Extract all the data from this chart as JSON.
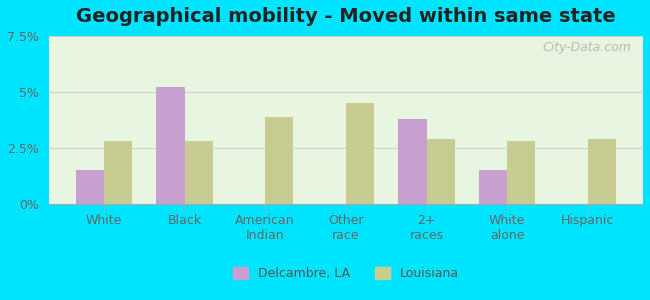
{
  "title": "Geographical mobility - Moved within same state",
  "categories": [
    "White",
    "Black",
    "American\nIndian",
    "Other\nrace",
    "2+\nraces",
    "White\nalone",
    "Hispanic"
  ],
  "delcambre_values": [
    1.5,
    5.2,
    0,
    0,
    3.8,
    1.5,
    0
  ],
  "louisiana_values": [
    2.8,
    2.8,
    3.9,
    4.5,
    2.9,
    2.8,
    2.9
  ],
  "delcambre_color": "#c8a0d0",
  "louisiana_color": "#c8cc90",
  "ylim": [
    0,
    7.5
  ],
  "yticks": [
    0,
    2.5,
    5.0,
    7.5
  ],
  "ytick_labels": [
    "0%",
    "2.5%",
    "5%",
    "7.5%"
  ],
  "background_color": "#e0faf0",
  "plot_bg_top": "#e8f5e0",
  "plot_bg_bottom": "#ffffff",
  "outer_bg": "#00e5ff",
  "legend_label1": "Delcambre, LA",
  "legend_label2": "Louisiana",
  "bar_width": 0.35,
  "title_fontsize": 14,
  "tick_fontsize": 9,
  "watermark": "City-Data.com"
}
